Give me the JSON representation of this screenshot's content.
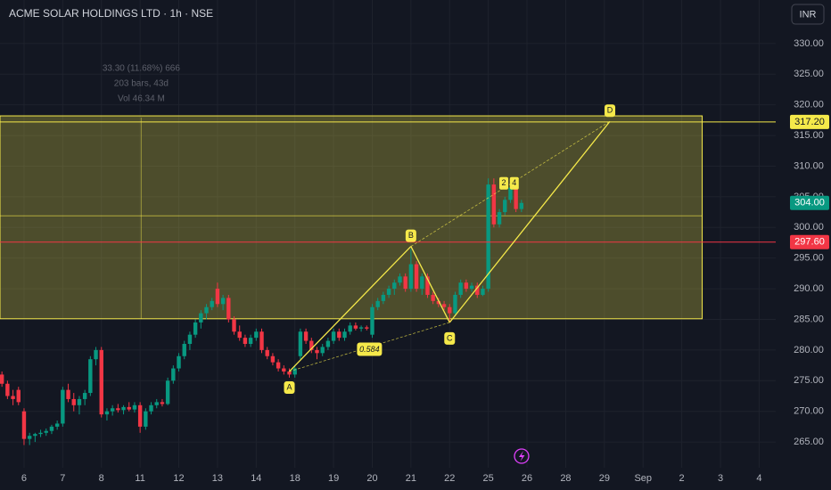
{
  "chart_data": {
    "type": "candlestick",
    "title": "ACME SOLAR HOLDINGS LTD · 1h · NSE",
    "currency": "INR",
    "up_color": "#089981",
    "down_color": "#f23645",
    "grid": true,
    "ylim": [
      260.8,
      337.1
    ],
    "yticks": [
      {
        "value": 265,
        "label": "265.00"
      },
      {
        "value": 270,
        "label": "270.00"
      },
      {
        "value": 275,
        "label": "275.00"
      },
      {
        "value": 280,
        "label": "280.00"
      },
      {
        "value": 285,
        "label": "285.00"
      },
      {
        "value": 290,
        "label": "290.00"
      },
      {
        "value": 295,
        "label": "295.00"
      },
      {
        "value": 300,
        "label": "300.00"
      },
      {
        "value": 305,
        "label": "305.00"
      },
      {
        "value": 310,
        "label": "310.00"
      },
      {
        "value": 315,
        "label": "315.00"
      },
      {
        "value": 320,
        "label": "320.00"
      },
      {
        "value": 325,
        "label": "325.00"
      },
      {
        "value": 330,
        "label": "330.00"
      }
    ],
    "xlim": [
      -0.35,
      140
    ],
    "xticks": [
      {
        "value": 4,
        "label": "6"
      },
      {
        "value": 11,
        "label": "7"
      },
      {
        "value": 18,
        "label": "8"
      },
      {
        "value": 25,
        "label": "11"
      },
      {
        "value": 32,
        "label": "12"
      },
      {
        "value": 39,
        "label": "13"
      },
      {
        "value": 46,
        "label": "14"
      },
      {
        "value": 53,
        "label": "18"
      },
      {
        "value": 60,
        "label": "19"
      },
      {
        "value": 67,
        "label": "20"
      },
      {
        "value": 74,
        "label": "21"
      },
      {
        "value": 81,
        "label": "22"
      },
      {
        "value": 88,
        "label": "25"
      },
      {
        "value": 95,
        "label": "26"
      },
      {
        "value": 102,
        "label": "28"
      },
      {
        "value": 109,
        "label": "29"
      },
      {
        "value": 116,
        "label": "Sep"
      },
      {
        "value": 123,
        "label": "2"
      },
      {
        "value": 130,
        "label": "3"
      },
      {
        "value": 137,
        "label": "4"
      }
    ],
    "candles": [
      [
        276,
        276.5,
        274,
        274.5
      ],
      [
        274.5,
        275,
        272,
        272.5
      ],
      [
        272.5,
        273.5,
        271,
        272
      ],
      [
        273.5,
        274,
        271,
        271.5
      ],
      [
        270,
        270.5,
        264.5,
        265.5
      ],
      [
        265.5,
        266.5,
        264.5,
        266
      ],
      [
        266,
        266.5,
        265,
        266.3
      ],
      [
        266.3,
        267,
        265.8,
        266.5
      ],
      [
        266.5,
        267.2,
        266,
        266.8
      ],
      [
        266.8,
        267.8,
        266.3,
        267.5
      ],
      [
        267.5,
        268.5,
        267,
        268
      ],
      [
        268,
        274,
        267.5,
        273.5
      ],
      [
        273.5,
        274.5,
        271.5,
        272
      ],
      [
        272,
        273,
        270,
        271
      ],
      [
        271,
        272.5,
        269.5,
        272
      ],
      [
        272,
        273.5,
        271,
        273
      ],
      [
        273,
        279,
        272.5,
        278.5
      ],
      [
        278.5,
        280.5,
        277.5,
        280
      ],
      [
        280,
        280.5,
        269,
        269.5
      ],
      [
        269.5,
        270.5,
        268.5,
        270
      ],
      [
        270,
        271,
        269.3,
        270.5
      ],
      [
        270.5,
        271.2,
        269.8,
        270.2
      ],
      [
        270.2,
        271,
        269.5,
        270.7
      ],
      [
        270.7,
        271.5,
        270,
        270.3
      ],
      [
        270.3,
        271.5,
        269.8,
        271
      ],
      [
        271,
        271.5,
        266.5,
        267.5
      ],
      [
        267.5,
        270.5,
        267,
        270
      ],
      [
        270,
        271.5,
        269.5,
        271
      ],
      [
        271,
        272,
        270.5,
        271.5
      ],
      [
        271.5,
        272,
        270.8,
        271.2
      ],
      [
        271.2,
        275.5,
        271,
        275
      ],
      [
        275,
        277.5,
        274.5,
        277
      ],
      [
        277,
        279.5,
        276.5,
        279
      ],
      [
        279,
        281.5,
        278.5,
        281
      ],
      [
        281,
        283,
        280,
        282.5
      ],
      [
        282.5,
        285,
        282,
        284.5
      ],
      [
        284.5,
        286.5,
        283.5,
        286
      ],
      [
        286,
        287.5,
        285,
        287
      ],
      [
        287,
        288.5,
        286.5,
        288
      ],
      [
        290,
        291,
        287,
        287.5
      ],
      [
        287.5,
        289,
        286.5,
        288.5
      ],
      [
        288.5,
        289,
        284.5,
        285
      ],
      [
        285,
        285.5,
        282.5,
        283
      ],
      [
        283,
        284,
        281.5,
        282
      ],
      [
        282,
        282.5,
        280.5,
        281
      ],
      [
        281,
        282.5,
        280.5,
        282
      ],
      [
        282,
        283.5,
        281.5,
        283
      ],
      [
        283,
        283.5,
        279.5,
        280
      ],
      [
        280,
        280.5,
        278.5,
        279
      ],
      [
        279,
        279.5,
        277.5,
        278
      ],
      [
        278,
        278.5,
        276.5,
        277
      ],
      [
        277,
        277.5,
        276,
        276.5
      ],
      [
        276.5,
        277,
        275.5,
        276
      ],
      [
        276,
        277.5,
        275.5,
        277
      ],
      [
        279,
        283.5,
        278.5,
        283
      ],
      [
        283,
        283.5,
        281,
        281.5
      ],
      [
        281.5,
        282,
        279.5,
        280
      ],
      [
        280,
        280.5,
        278.5,
        279.5
      ],
      [
        279.5,
        281,
        279,
        280.5
      ],
      [
        280.5,
        282,
        280,
        281.5
      ],
      [
        281.5,
        283.5,
        281,
        283
      ],
      [
        283,
        283.5,
        281.5,
        282
      ],
      [
        282,
        283.5,
        281.5,
        283
      ],
      [
        283,
        284.5,
        282.5,
        284
      ],
      [
        284,
        284.5,
        283.2,
        283.5
      ],
      [
        283.5,
        284,
        283,
        283.7
      ],
      [
        283.7,
        284,
        283.2,
        283.5
      ],
      [
        282.5,
        287.5,
        282,
        287
      ],
      [
        287,
        288.5,
        286.5,
        288
      ],
      [
        288,
        289.5,
        287.5,
        289
      ],
      [
        289,
        290.5,
        288.5,
        290
      ],
      [
        290,
        291.5,
        289,
        291
      ],
      [
        291,
        292.5,
        290.5,
        292
      ],
      [
        292,
        292.5,
        289.5,
        290
      ],
      [
        290,
        296.5,
        289.5,
        294
      ],
      [
        294,
        294.5,
        289.5,
        290
      ],
      [
        290,
        292.5,
        289,
        292
      ],
      [
        292,
        292.5,
        288.5,
        289
      ],
      [
        289,
        289.5,
        287.5,
        288
      ],
      [
        288,
        288.5,
        287,
        287.5
      ],
      [
        287.5,
        288,
        286.5,
        287
      ],
      [
        287,
        287.5,
        284.5,
        286
      ],
      [
        286,
        289.5,
        285.5,
        289
      ],
      [
        289,
        291.5,
        288.5,
        291
      ],
      [
        291,
        291.5,
        289.5,
        290
      ],
      [
        290,
        291,
        289.5,
        290.5
      ],
      [
        290.5,
        291,
        288.5,
        289
      ],
      [
        289,
        290.5,
        288.8,
        290
      ],
      [
        290,
        308,
        289.5,
        307
      ],
      [
        307,
        308,
        300,
        300.5
      ],
      [
        300.5,
        303,
        300,
        302.5
      ],
      [
        302.5,
        305,
        302,
        304.5
      ],
      [
        304.5,
        307.5,
        304,
        306.5
      ],
      [
        306.5,
        307.5,
        302.5,
        303
      ],
      [
        303,
        304.5,
        302.5,
        304
      ]
    ],
    "last_price": {
      "value": 304,
      "label": "304.00",
      "color": "#089981"
    },
    "levels": [
      {
        "value": 317.2,
        "label": "317.20",
        "color": "#f5e94a"
      },
      {
        "value": 297.6,
        "label": "297.60",
        "color": "#f23645"
      }
    ],
    "zone": {
      "top": 318.2,
      "bottom": 285.1,
      "mid": 301.9,
      "x_end": 126.7,
      "color": "#f5e94a"
    },
    "pattern": {
      "color": "#f5e94a",
      "points": [
        {
          "label": "A",
          "x": 52,
          "y": 276.5
        },
        {
          "label": "B",
          "x": 74,
          "y": 296.9
        },
        {
          "label": "C",
          "x": 81,
          "y": 284.5
        },
        {
          "label": "D",
          "x": 110,
          "y": 317.3
        }
      ],
      "ratio": 0.584
    },
    "markers": [
      {
        "text": "2",
        "x": 90.8,
        "y": 307.2
      },
      {
        "text": "4",
        "x": 92.7,
        "y": 307.2
      }
    ],
    "measure": {
      "x": 25.2,
      "lines": [
        "33.30 (11.68%) 666",
        "203 bars, 43d",
        "Vol 46.34 M"
      ]
    }
  }
}
